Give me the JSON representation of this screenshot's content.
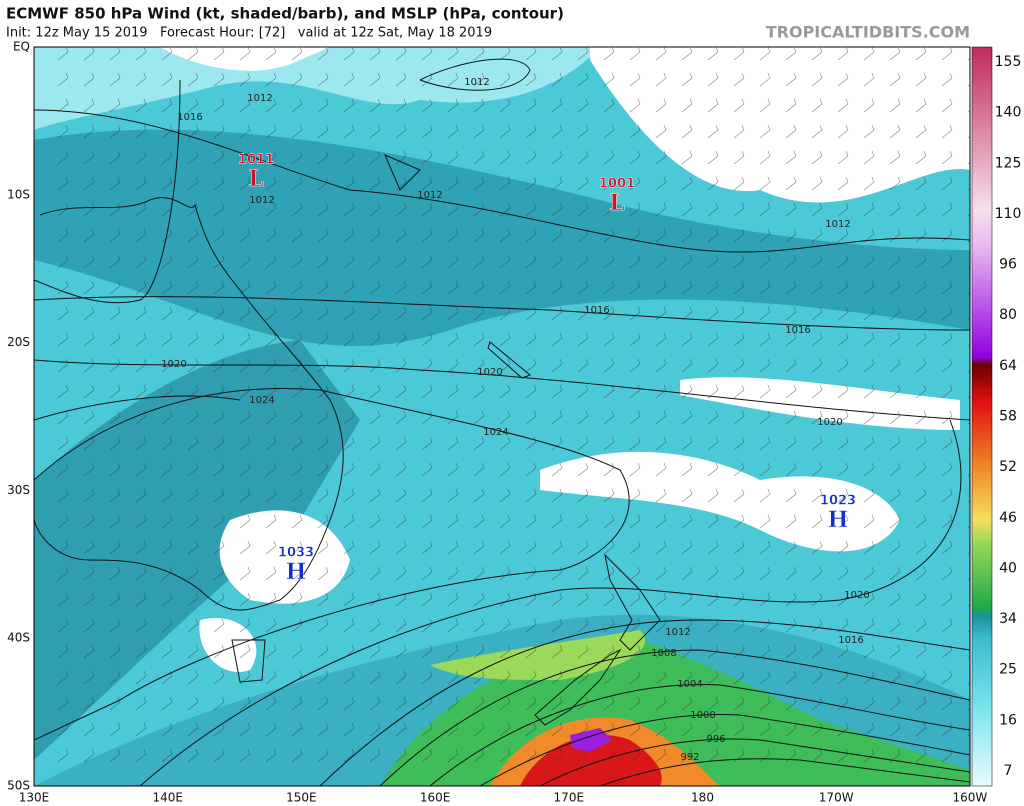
{
  "header": {
    "title": "ECMWF 850 hPa Wind (kt, shaded/barb), and MSLP (hPa, contour)",
    "subtitle": "Init: 12z May 15 2019   Forecast Hour: [72]   valid at 12z Sat, May 18 2019",
    "site": "TROPICALTIDBITS.COM"
  },
  "map": {
    "lat_labels": [
      "EQ",
      "10S",
      "20S",
      "30S",
      "40S",
      "50S"
    ],
    "lon_labels": [
      "130E",
      "140E",
      "150E",
      "160E",
      "170E",
      "180",
      "170W",
      "160W"
    ],
    "centers": [
      {
        "symbol": "L",
        "pressure": 1011
      },
      {
        "symbol": "L",
        "pressure": 1001
      },
      {
        "symbol": "H",
        "pressure": 1033
      },
      {
        "symbol": "H",
        "pressure": 1023
      }
    ],
    "contour_labels": [
      1012,
      1012,
      1016,
      1012,
      1012,
      1012,
      1016,
      1016,
      1020,
      1020,
      1024,
      1024,
      1020,
      1020,
      1016,
      1012,
      1008,
      1004,
      1000,
      996,
      992
    ]
  },
  "colorbar": {
    "ticks": [
      7,
      16,
      25,
      34,
      40,
      46,
      52,
      58,
      64,
      80,
      96,
      110,
      125,
      140,
      155
    ]
  }
}
